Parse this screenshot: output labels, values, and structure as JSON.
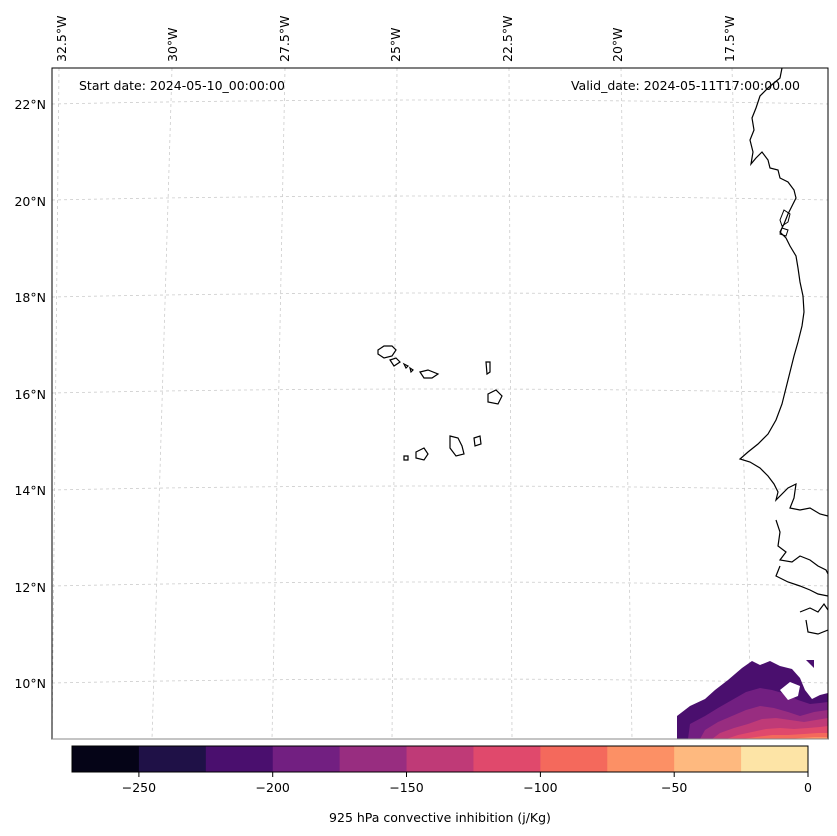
{
  "header": {
    "start_date": "Start date: 2024-05-10_00:00:00",
    "valid_date": "Valid_date: 2024-05-11T17:00:00.00"
  },
  "longitude_labels": [
    "32.5°W",
    "30°W",
    "27.5°W",
    "25°W",
    "22.5°W",
    "20°W",
    "17.5°W"
  ],
  "latitude_labels": [
    "22°N",
    "20°N",
    "18°N",
    "16°N",
    "14°N",
    "12°N",
    "10°N"
  ],
  "colorbar": {
    "label": "925 hPa convective inhibition (j/Kg)",
    "tick_labels": [
      "−250",
      "−200",
      "−150",
      "−100",
      "−50",
      "0"
    ],
    "colors": [
      "#050417",
      "#1f1147",
      "#4a0f6e",
      "#721f81",
      "#982d80",
      "#bf3a77",
      "#e0496c",
      "#f4695c",
      "#fc9065",
      "#feb97f",
      "#fde4a6"
    ]
  }
}
